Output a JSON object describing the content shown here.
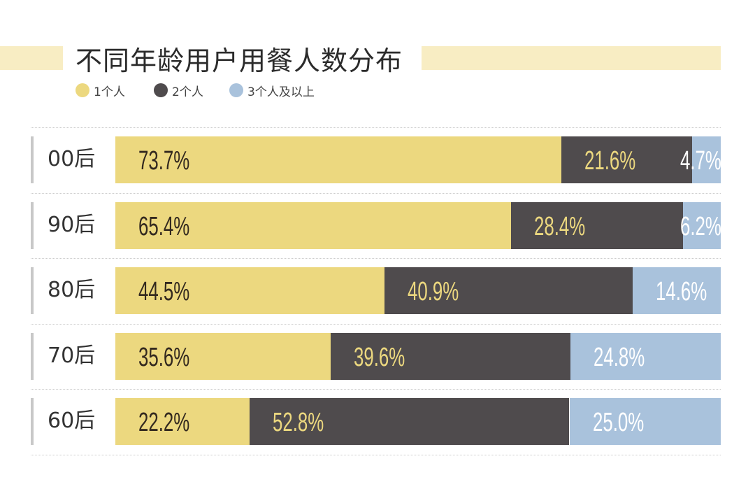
{
  "chart_data": {
    "type": "bar",
    "orientation": "horizontal",
    "stacked": true,
    "title": "不同年龄用户用餐人数分布",
    "categories": [
      "00后",
      "90后",
      "80后",
      "70后",
      "60后"
    ],
    "series": [
      {
        "name": "1个人",
        "color": "#ecd87f",
        "label_color": "#33291f",
        "values": [
          73.7,
          65.4,
          44.5,
          35.6,
          22.2
        ],
        "labels": [
          "73.7%",
          "65.4%",
          "44.5%",
          "35.6%",
          "22.2%"
        ]
      },
      {
        "name": "2个人",
        "color": "#4f4b4d",
        "label_color": "#ecd87f",
        "values": [
          21.6,
          28.4,
          40.9,
          39.6,
          52.8
        ],
        "labels": [
          "21.6%",
          "28.4%",
          "40.9%",
          "39.6%",
          "52.8%"
        ]
      },
      {
        "name": "3个人及以上",
        "color": "#a9c2dc",
        "label_color": "#ffffff",
        "values": [
          4.7,
          6.2,
          14.6,
          24.8,
          25.0
        ],
        "labels": [
          "4.7%",
          "6.2%",
          "14.6%",
          "24.8%",
          "25.0%"
        ]
      }
    ],
    "xlim": [
      0,
      100
    ],
    "unit": "%",
    "legend_placement": "top-left",
    "grid": false
  }
}
